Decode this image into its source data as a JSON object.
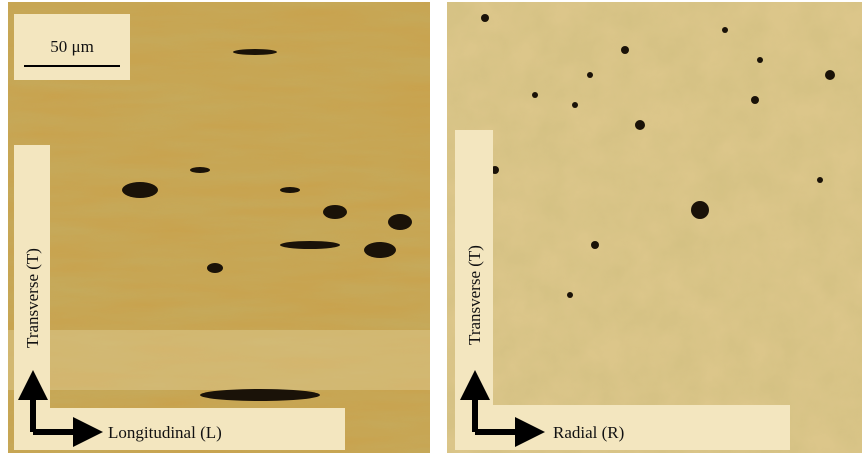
{
  "panels": [
    {
      "scale_bar": "50 μm",
      "axes": {
        "vertical": "Transverse (T)",
        "horizontal": "Longitudinal (L)"
      }
    },
    {
      "axes": {
        "vertical": "Transverse (T)",
        "horizontal": "Radial (R)"
      }
    }
  ]
}
